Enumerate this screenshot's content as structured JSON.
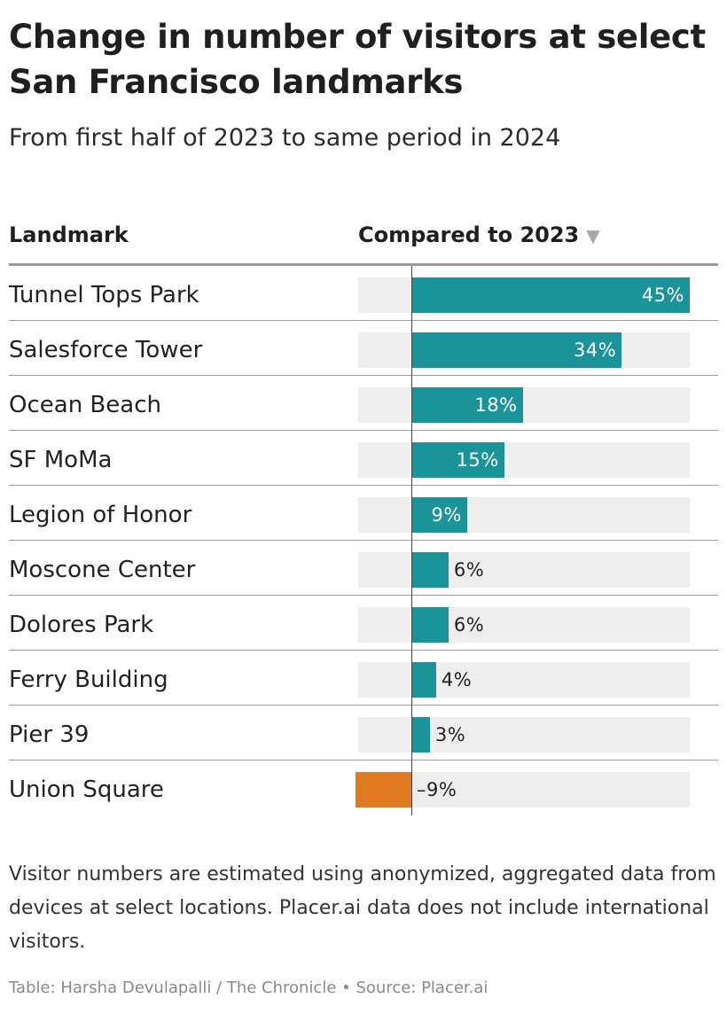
{
  "title": "Change in number of visitors at select San Francisco landmarks",
  "subtitle": "From first half of 2023 to same period in 2024",
  "table": {
    "col_landmark": "Landmark",
    "col_compare": "Compared to 2023",
    "sort_icon": "sort-descending-icon"
  },
  "colors": {
    "positive": "#1a9399",
    "negative": "#e07b22",
    "track": "#eeeeee"
  },
  "chart_data": {
    "type": "bar",
    "orientation": "horizontal",
    "xlim": [
      -9,
      45
    ],
    "categories": [
      "Tunnel Tops Park",
      "Salesforce Tower",
      "Ocean Beach",
      "SF MoMa",
      "Legion of Honor",
      "Moscone Center",
      "Dolores Park",
      "Ferry Building",
      "Pier 39",
      "Union Square"
    ],
    "values": [
      45,
      34,
      18,
      15,
      9,
      6,
      6,
      4,
      3,
      -9
    ],
    "value_labels": [
      "45%",
      "34%",
      "18%",
      "15%",
      "9%",
      "6%",
      "6%",
      "4%",
      "3%",
      "–9%"
    ]
  },
  "note": "Visitor numbers are estimated using anonymized, aggregated data from devices at select locations. Placer.ai data does not include international visitors.",
  "credit": "Table: Harsha Devulapalli / The Chronicle • Source: Placer.ai"
}
